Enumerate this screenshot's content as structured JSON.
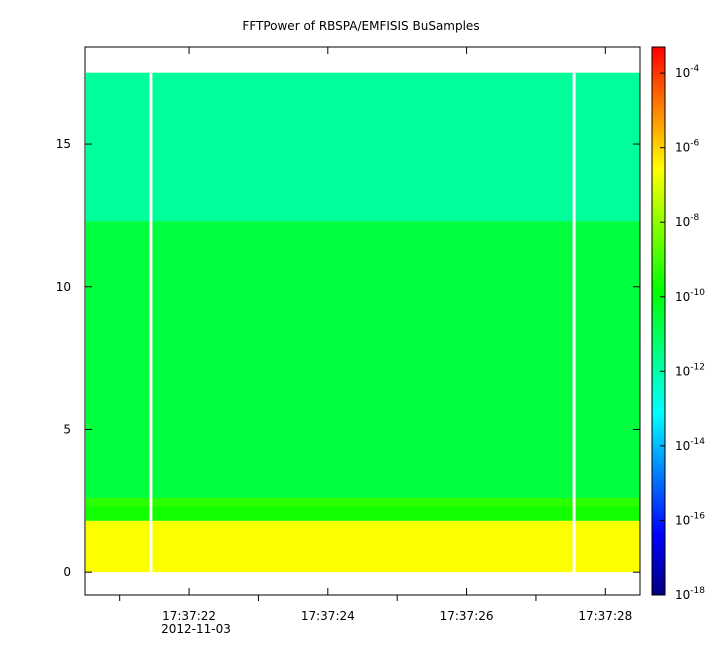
{
  "chart_data": {
    "type": "heatmap",
    "title": "FFTPower of RBSPA/EMFISIS  BuSamples",
    "xlabel": "",
    "ylabel": "",
    "x_tick_labels": [
      "17:37:22",
      "17:37:24",
      "17:37:26",
      "17:37:28"
    ],
    "x_tick_seconds": [
      22,
      24,
      26,
      28
    ],
    "x_minor_tick_seconds": [
      21,
      23,
      25,
      27
    ],
    "x_date_label": "2012-11-03",
    "xlim_seconds": [
      20.5,
      28.5
    ],
    "y_ticks": [
      0,
      5,
      10,
      15
    ],
    "y_tick_labels": [
      "0",
      "5",
      "10",
      "15"
    ],
    "ylim": [
      -0.8,
      18.4
    ],
    "data_y_range": [
      0,
      17.5
    ],
    "data_gaps_seconds": [
      21.45,
      27.55
    ],
    "bands": [
      {
        "y_from": 0.0,
        "y_to": 1.8,
        "log10_power": -6.6
      },
      {
        "y_from": 1.8,
        "y_to": 2.3,
        "log10_power": -9.6
      },
      {
        "y_from": 2.3,
        "y_to": 2.6,
        "log10_power": -9.3
      },
      {
        "y_from": 2.6,
        "y_to": 12.3,
        "log10_power": -10.6
      },
      {
        "y_from": 12.3,
        "y_to": 17.5,
        "log10_power": -11.8
      }
    ],
    "colorbar": {
      "scale": "log",
      "range_exponent": [
        -18,
        -3.3
      ],
      "tick_exponents": [
        -4,
        -6,
        -8,
        -10,
        -12,
        -14,
        -16,
        -18
      ],
      "colormap": [
        "#00007f",
        "#0000ff",
        "#0080ff",
        "#00ffff",
        "#00ff80",
        "#00ff00",
        "#80ff00",
        "#ffff00",
        "#ff8000",
        "#ff0000"
      ]
    },
    "grid": false
  }
}
